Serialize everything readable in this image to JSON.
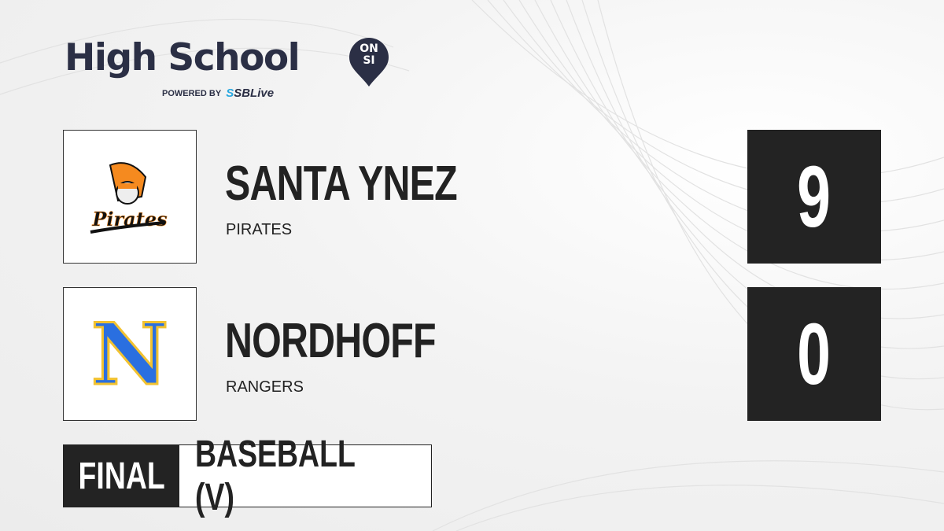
{
  "brand": {
    "title": "High School",
    "badge_top": "ON",
    "badge_bottom": "SI",
    "powered_by": "POWERED BY",
    "partner": "SBLive"
  },
  "teams": [
    {
      "name": "SANTA YNEZ",
      "mascot": "PIRATES",
      "score": "9",
      "logo_text": "Pirates",
      "logo_colors": {
        "primary": "#f58a1f",
        "secondary": "#111111"
      }
    },
    {
      "name": "NORDHOFF",
      "mascot": "RANGERS",
      "score": "0",
      "logo_text": "N",
      "logo_colors": {
        "primary": "#2a6fe0",
        "secondary": "#f2c230"
      }
    }
  ],
  "game": {
    "status": "FINAL",
    "sport": "BASEBALL (V)"
  },
  "colors": {
    "brand_navy": "#2b2f45",
    "score_bg": "#232323",
    "partner_blue": "#29a8e0"
  }
}
